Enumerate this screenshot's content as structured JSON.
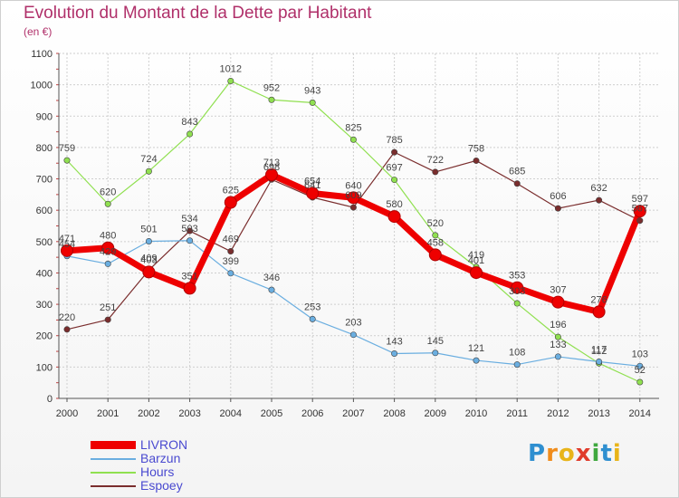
{
  "chart_data": {
    "type": "line",
    "title": "Evolution du Montant de la Dette par Habitant",
    "subtitle": "(en €)",
    "xlabel": "",
    "ylabel": "",
    "categories": [
      "2000",
      "2001",
      "2002",
      "2003",
      "2004",
      "2005",
      "2006",
      "2007",
      "2008",
      "2009",
      "2010",
      "2011",
      "2012",
      "2013",
      "2014"
    ],
    "ylim": [
      0,
      1100
    ],
    "yticks": [
      0,
      100,
      200,
      300,
      400,
      500,
      600,
      700,
      800,
      900,
      1000,
      1100
    ],
    "grid": true,
    "legend_position": "bottom-left",
    "series": [
      {
        "name": "Espoey",
        "color": "#7a2d2d",
        "values": [
          220,
          251,
          409,
          534,
          469,
          698,
          641,
          609,
          785,
          722,
          758,
          685,
          606,
          632,
          567
        ]
      },
      {
        "name": "Hours",
        "color": "#90e050",
        "values": [
          759,
          620,
          724,
          843,
          1012,
          952,
          943,
          825,
          697,
          520,
          419,
          303,
          196,
          112,
          52
        ]
      },
      {
        "name": "Barzun",
        "color": "#6aaee0",
        "values": [
          454,
          429,
          501,
          503,
          399,
          346,
          253,
          203,
          143,
          145,
          121,
          108,
          133,
          117,
          103
        ]
      },
      {
        "name": "LIVRON",
        "color": "#ee0000",
        "values": [
          471,
          480,
          403,
          351,
          625,
          713,
          654,
          640,
          580,
          458,
          401,
          353,
          307,
          276,
          597
        ]
      }
    ]
  },
  "legend": [
    "LIVRON",
    "Barzun",
    "Hours",
    "Espoey"
  ],
  "logo": {
    "letters": [
      "P",
      "r",
      "o",
      "x",
      "i",
      "t",
      "i"
    ],
    "colors": [
      "#2f8fd0",
      "#f08c1c",
      "#e8b41a",
      "#e03c2c",
      "#3fa83f",
      "#2f8fd0",
      "#e8b41a"
    ]
  }
}
